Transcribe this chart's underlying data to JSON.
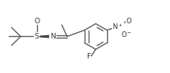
{
  "bg_color": "#ffffff",
  "line_color": "#606060",
  "text_color": "#333333",
  "line_width": 1.0,
  "font_size": 6.5,
  "fig_width": 2.11,
  "fig_height": 0.91,
  "dpi": 100,
  "xlim": [
    0,
    9.5
  ],
  "ylim": [
    0,
    4.1
  ]
}
